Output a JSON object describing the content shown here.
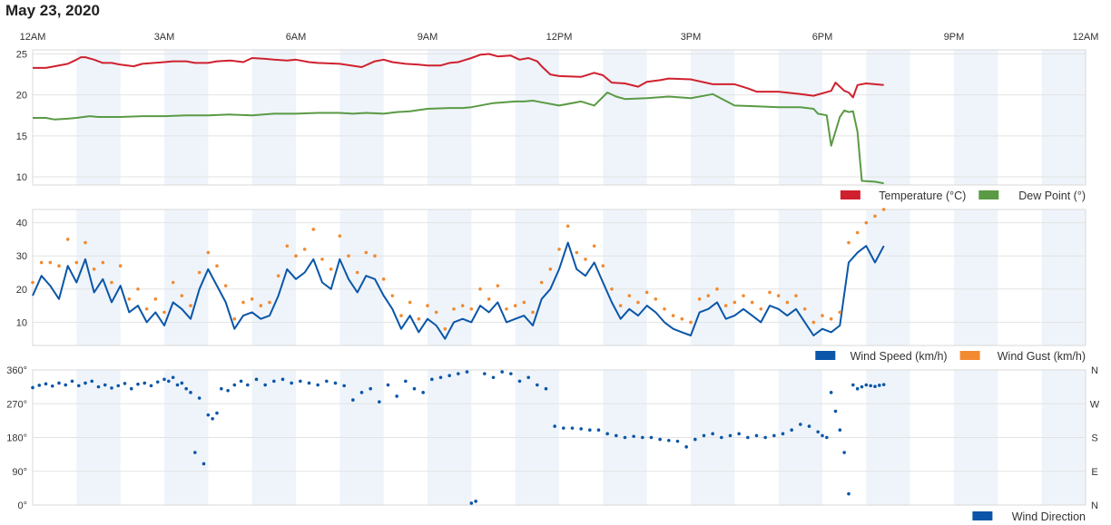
{
  "title": "May 23, 2020",
  "colors": {
    "temperature": "#d0202e",
    "dew_point": "#5a9a45",
    "wind_speed": "#0b56a8",
    "wind_gust": "#f28a30",
    "wind_direction": "#0b56a8",
    "band": "#eef4fa",
    "grid": "#e3e3e3"
  },
  "time_axis": {
    "labels": [
      "12AM",
      "3AM",
      "6AM",
      "9AM",
      "12PM",
      "3PM",
      "6PM",
      "9PM",
      "12AM"
    ],
    "range_hours": [
      0,
      24
    ]
  },
  "chart_data": [
    {
      "type": "line",
      "x_unit": "hour of day",
      "ylim": [
        9,
        25.5
      ],
      "yticks": [
        10,
        15,
        20,
        25
      ],
      "legend": [
        "Temperature (°C)",
        "Dew Point (°)"
      ],
      "series": [
        {
          "name": "Temperature (°C)",
          "x": [
            0,
            0.3,
            0.5,
            0.8,
            1.0,
            1.1,
            1.2,
            1.4,
            1.6,
            1.8,
            2.0,
            2.3,
            2.5,
            3.0,
            3.2,
            3.5,
            3.7,
            4.0,
            4.2,
            4.5,
            4.8,
            5.0,
            5.3,
            5.5,
            5.8,
            6.0,
            6.3,
            6.5,
            7.0,
            7.5,
            7.8,
            8.0,
            8.2,
            8.5,
            8.8,
            9.0,
            9.3,
            9.5,
            9.7,
            10.0,
            10.2,
            10.4,
            10.6,
            10.9,
            11.1,
            11.3,
            11.5,
            11.6,
            11.8,
            12.0,
            12.5,
            12.8,
            13.0,
            13.2,
            13.5,
            13.8,
            14.0,
            14.3,
            14.5,
            15.0,
            15.5,
            16.0,
            16.3,
            16.5,
            17.0,
            17.5,
            17.8,
            18.2,
            18.3,
            18.5,
            18.6,
            18.7,
            18.8,
            19.0,
            19.4
          ],
          "values": [
            23.3,
            23.3,
            23.5,
            23.8,
            24.3,
            24.6,
            24.6,
            24.3,
            23.9,
            23.9,
            23.7,
            23.5,
            23.8,
            24.0,
            24.1,
            24.1,
            23.9,
            23.9,
            24.1,
            24.2,
            24.0,
            24.5,
            24.4,
            24.3,
            24.2,
            24.3,
            24.0,
            23.9,
            23.8,
            23.4,
            24.1,
            24.3,
            24.0,
            23.8,
            23.7,
            23.6,
            23.6,
            23.9,
            24.0,
            24.5,
            24.9,
            25.0,
            24.7,
            24.8,
            24.3,
            24.5,
            24.1,
            23.5,
            22.5,
            22.3,
            22.2,
            22.7,
            22.4,
            21.5,
            21.4,
            21.0,
            21.6,
            21.8,
            22.0,
            21.9,
            21.3,
            21.3,
            20.8,
            20.4,
            20.4,
            20.1,
            19.9,
            20.5,
            21.5,
            20.5,
            20.3,
            19.7,
            21.2,
            21.4,
            21.2
          ]
        },
        {
          "name": "Dew Point (°)",
          "x": [
            0,
            0.3,
            0.5,
            0.8,
            1.0,
            1.3,
            1.5,
            2.0,
            2.5,
            3.0,
            3.5,
            4.0,
            4.5,
            5.0,
            5.5,
            6.0,
            6.5,
            7.0,
            7.3,
            7.6,
            8.0,
            8.3,
            8.6,
            9.0,
            9.5,
            9.8,
            10.0,
            10.5,
            11.0,
            11.2,
            11.4,
            11.6,
            12.0,
            12.5,
            12.8,
            13.1,
            13.3,
            13.5,
            14.0,
            14.5,
            15.0,
            15.5,
            16.0,
            16.5,
            17.0,
            17.5,
            17.8,
            17.9,
            18.1,
            18.2,
            18.4,
            18.5,
            18.6,
            18.7,
            18.8,
            18.9,
            19.2,
            19.4
          ],
          "values": [
            17.2,
            17.2,
            17.0,
            17.1,
            17.2,
            17.4,
            17.3,
            17.3,
            17.4,
            17.4,
            17.5,
            17.5,
            17.6,
            17.5,
            17.7,
            17.7,
            17.8,
            17.8,
            17.7,
            17.8,
            17.7,
            17.9,
            18.0,
            18.3,
            18.4,
            18.4,
            18.5,
            19.0,
            19.2,
            19.2,
            19.3,
            19.1,
            18.7,
            19.2,
            18.7,
            20.3,
            19.8,
            19.5,
            19.6,
            19.8,
            19.6,
            20.1,
            18.7,
            18.6,
            18.5,
            18.5,
            18.3,
            17.7,
            17.5,
            13.8,
            17.3,
            18.1,
            17.9,
            18.0,
            15.5,
            9.5,
            9.4,
            9.2
          ]
        }
      ]
    },
    {
      "type": "line",
      "x_unit": "hour of day",
      "ylim": [
        3,
        44
      ],
      "yticks": [
        10,
        20,
        30,
        40
      ],
      "legend": [
        "Wind Speed (km/h)",
        "Wind Gust (km/h)"
      ],
      "series": [
        {
          "name": "Wind Speed (km/h)",
          "x": [
            0,
            0.2,
            0.4,
            0.6,
            0.8,
            1.0,
            1.2,
            1.4,
            1.6,
            1.8,
            2.0,
            2.2,
            2.4,
            2.6,
            2.8,
            3.0,
            3.2,
            3.4,
            3.6,
            3.8,
            4.0,
            4.2,
            4.4,
            4.6,
            4.8,
            5.0,
            5.2,
            5.4,
            5.6,
            5.8,
            6.0,
            6.2,
            6.4,
            6.6,
            6.8,
            7.0,
            7.2,
            7.4,
            7.6,
            7.8,
            8.0,
            8.2,
            8.4,
            8.6,
            8.8,
            9.0,
            9.2,
            9.4,
            9.6,
            9.8,
            10.0,
            10.2,
            10.4,
            10.6,
            10.8,
            11.0,
            11.2,
            11.4,
            11.6,
            11.8,
            12.0,
            12.2,
            12.4,
            12.6,
            12.8,
            13.0,
            13.2,
            13.4,
            13.6,
            13.8,
            14.0,
            14.2,
            14.4,
            14.6,
            14.8,
            15.0,
            15.2,
            15.4,
            15.6,
            15.8,
            16.0,
            16.2,
            16.4,
            16.6,
            16.8,
            17.0,
            17.2,
            17.4,
            17.6,
            17.8,
            18.0,
            18.2,
            18.4,
            18.6,
            18.8,
            19.0,
            19.2,
            19.4
          ],
          "values": [
            18,
            24,
            21,
            17,
            27,
            22,
            29,
            19,
            23,
            16,
            21,
            13,
            15,
            10,
            13,
            9,
            16,
            14,
            11,
            20,
            26,
            21,
            16,
            8,
            12,
            13,
            11,
            12,
            18,
            26,
            23,
            25,
            29,
            22,
            20,
            29,
            23,
            19,
            24,
            23,
            18,
            14,
            8,
            12,
            7,
            11,
            9,
            5,
            10,
            11,
            10,
            15,
            13,
            16,
            10,
            11,
            12,
            9,
            17,
            20,
            26,
            34,
            26,
            24,
            28,
            22,
            16,
            11,
            14,
            12,
            15,
            13,
            10,
            8,
            7,
            6,
            13,
            14,
            16,
            11,
            12,
            14,
            12,
            10,
            15,
            14,
            12,
            14,
            10,
            6,
            8,
            7,
            9,
            28,
            31,
            33,
            28,
            33
          ]
        },
        {
          "name": "Wind Gust (km/h)",
          "x": [
            0,
            0.2,
            0.4,
            0.6,
            0.8,
            1.0,
            1.2,
            1.4,
            1.6,
            1.8,
            2.0,
            2.2,
            2.4,
            2.6,
            2.8,
            3.0,
            3.2,
            3.4,
            3.6,
            3.8,
            4.0,
            4.2,
            4.4,
            4.6,
            4.8,
            5.0,
            5.2,
            5.4,
            5.6,
            5.8,
            6.0,
            6.2,
            6.4,
            6.6,
            6.8,
            7.0,
            7.2,
            7.4,
            7.6,
            7.8,
            8.0,
            8.2,
            8.4,
            8.6,
            8.8,
            9.0,
            9.2,
            9.4,
            9.6,
            9.8,
            10.0,
            10.2,
            10.4,
            10.6,
            10.8,
            11.0,
            11.2,
            11.4,
            11.6,
            11.8,
            12.0,
            12.2,
            12.4,
            12.6,
            12.8,
            13.0,
            13.2,
            13.4,
            13.6,
            13.8,
            14.0,
            14.2,
            14.4,
            14.6,
            14.8,
            15.0,
            15.2,
            15.4,
            15.6,
            15.8,
            16.0,
            16.2,
            16.4,
            16.6,
            16.8,
            17.0,
            17.2,
            17.4,
            17.6,
            17.8,
            18.0,
            18.2,
            18.4,
            18.6,
            18.8,
            19.0,
            19.2,
            19.4
          ],
          "values": [
            22,
            28,
            28,
            27,
            35,
            28,
            34,
            26,
            28,
            22,
            27,
            17,
            20,
            14,
            17,
            13,
            22,
            18,
            15,
            25,
            31,
            27,
            21,
            11,
            16,
            17,
            15,
            16,
            24,
            33,
            30,
            32,
            38,
            29,
            26,
            36,
            30,
            25,
            31,
            30,
            23,
            18,
            12,
            16,
            11,
            15,
            13,
            8,
            14,
            15,
            14,
            20,
            17,
            21,
            14,
            15,
            16,
            13,
            22,
            26,
            32,
            39,
            31,
            29,
            33,
            27,
            20,
            15,
            18,
            16,
            19,
            17,
            14,
            12,
            11,
            10,
            17,
            18,
            20,
            15,
            16,
            18,
            16,
            14,
            19,
            18,
            16,
            18,
            14,
            10,
            12,
            11,
            13,
            34,
            37,
            40,
            42,
            44
          ]
        }
      ]
    },
    {
      "type": "scatter",
      "x_unit": "hour of day",
      "ylim": [
        0,
        360
      ],
      "yticks": [
        0,
        90,
        180,
        270,
        360
      ],
      "ytick_labels": [
        "0°",
        "90°",
        "180°",
        "270°",
        "360°"
      ],
      "right_labels": [
        "N",
        "E",
        "S",
        "W",
        "N"
      ],
      "legend": [
        "Wind Direction"
      ],
      "series": [
        {
          "name": "Wind Direction",
          "x": [
            0,
            0.15,
            0.3,
            0.45,
            0.6,
            0.75,
            0.9,
            1.05,
            1.2,
            1.35,
            1.5,
            1.65,
            1.8,
            1.95,
            2.1,
            2.25,
            2.4,
            2.55,
            2.7,
            2.85,
            3.0,
            3.1,
            3.2,
            3.3,
            3.4,
            3.5,
            3.6,
            3.7,
            3.8,
            3.9,
            4.0,
            4.1,
            4.2,
            4.3,
            4.45,
            4.6,
            4.75,
            4.9,
            5.1,
            5.3,
            5.5,
            5.7,
            5.9,
            6.1,
            6.3,
            6.5,
            6.7,
            6.9,
            7.1,
            7.3,
            7.5,
            7.7,
            7.9,
            8.1,
            8.3,
            8.5,
            8.7,
            8.9,
            9.1,
            9.3,
            9.5,
            9.7,
            9.9,
            10.0,
            10.1,
            10.3,
            10.5,
            10.7,
            10.9,
            11.1,
            11.3,
            11.5,
            11.7,
            11.9,
            12.1,
            12.3,
            12.5,
            12.7,
            12.9,
            13.1,
            13.3,
            13.5,
            13.7,
            13.9,
            14.1,
            14.3,
            14.5,
            14.7,
            14.9,
            15.1,
            15.3,
            15.5,
            15.7,
            15.9,
            16.1,
            16.3,
            16.5,
            16.7,
            16.9,
            17.1,
            17.3,
            17.5,
            17.7,
            17.9,
            18.0,
            18.1,
            18.2,
            18.3,
            18.4,
            18.5,
            18.6,
            18.7,
            18.8,
            18.9,
            19.0,
            19.1,
            19.2,
            19.3,
            19.4
          ],
          "values": [
            313,
            319,
            323,
            317,
            325,
            320,
            330,
            318,
            325,
            330,
            315,
            320,
            312,
            318,
            324,
            310,
            322,
            325,
            318,
            328,
            335,
            330,
            340,
            320,
            325,
            310,
            300,
            140,
            285,
            110,
            240,
            230,
            245,
            310,
            305,
            320,
            330,
            320,
            335,
            320,
            330,
            335,
            325,
            330,
            325,
            320,
            330,
            325,
            318,
            280,
            300,
            310,
            275,
            320,
            290,
            330,
            310,
            300,
            335,
            340,
            345,
            350,
            355,
            5,
            10,
            350,
            340,
            355,
            350,
            330,
            340,
            320,
            310,
            210,
            205,
            205,
            203,
            200,
            200,
            190,
            185,
            180,
            183,
            180,
            180,
            175,
            172,
            170,
            155,
            175,
            185,
            190,
            180,
            185,
            190,
            180,
            185,
            180,
            185,
            190,
            200,
            215,
            210,
            195,
            185,
            180,
            300,
            250,
            200,
            140,
            30,
            320,
            310,
            315,
            320,
            318,
            316,
            319,
            321
          ]
        }
      ]
    }
  ]
}
